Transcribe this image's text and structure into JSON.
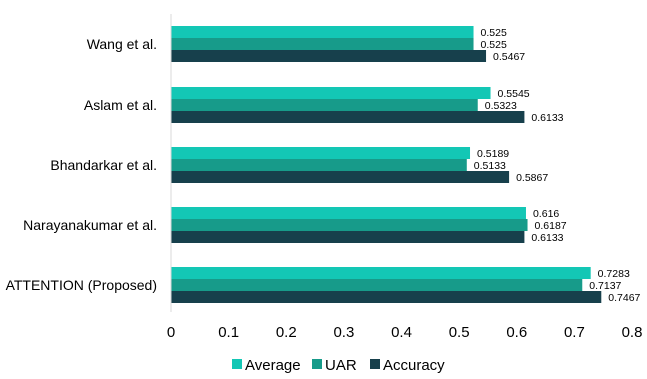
{
  "chart_data": {
    "type": "bar",
    "orientation": "horizontal",
    "categories": [
      "Wang et al.",
      "Aslam et al.",
      "Bhandarkar et al.",
      "Narayanakumar et al.",
      "ATTENTION (Proposed)"
    ],
    "series": [
      {
        "name": "Average",
        "color": "#13c7b5",
        "values": [
          0.525,
          0.5545,
          0.5189,
          0.616,
          0.7283
        ],
        "labels": [
          "0.525",
          "0.5545",
          "0.5189",
          "0.616",
          "0.7283"
        ]
      },
      {
        "name": "UAR",
        "color": "#179b8a",
        "values": [
          0.525,
          0.5323,
          0.5133,
          0.6187,
          0.7137
        ],
        "labels": [
          "0.525",
          "0.5323",
          "0.5133",
          "0.6187",
          "0.7137"
        ]
      },
      {
        "name": "Accuracy",
        "color": "#17404c",
        "values": [
          0.5467,
          0.6133,
          0.5867,
          0.6133,
          0.7467
        ],
        "labels": [
          "0.5467",
          "0.6133",
          "0.5867",
          "0.6133",
          "0.7467"
        ]
      }
    ],
    "xlim": [
      0,
      0.8
    ],
    "xticks": [
      "0",
      "0.1",
      "0.2",
      "0.3",
      "0.4",
      "0.5",
      "0.6",
      "0.7",
      "0.8"
    ],
    "grid": false,
    "legend_position": "bottom",
    "title": "",
    "xlabel": "",
    "ylabel": ""
  }
}
